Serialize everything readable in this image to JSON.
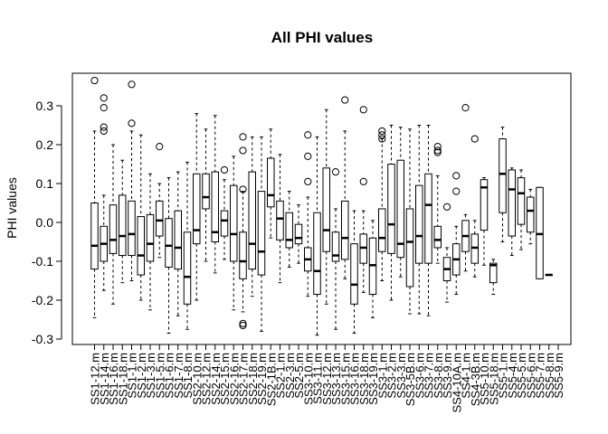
{
  "chart_data": {
    "type": "box",
    "title": "All PHI values",
    "xlabel": "",
    "ylabel": "PHI values",
    "ylim": [
      -0.33,
      0.39
    ],
    "yticks": [
      -0.3,
      -0.2,
      -0.1,
      0.0,
      0.1,
      0.2,
      0.3
    ],
    "ytick_labels": [
      "-0.3",
      "-0.2",
      "-0.1",
      "0.0",
      "0.1",
      "0.2",
      "0.3"
    ],
    "grid": false,
    "legend": "none",
    "colors": {
      "box_fill": "#ffffff",
      "stroke": "#000000",
      "median": "#000000"
    },
    "categories": [
      "SS1-12.m",
      "SS1-14.m",
      "SS1-16.m",
      "SS1-18.m",
      "SS1-1.m",
      "SS1-2.m",
      "SS1-3.m",
      "SS1-5.m",
      "SS1-6.m",
      "SS1-7.m",
      "SS1-8.m",
      "SS2-10.m",
      "SS2-12.m",
      "SS2-14.m",
      "SS2-15.m",
      "SS2-16.m",
      "SS2-17.m",
      "SS2-18.m",
      "SS2-19.m",
      "SS2-1B.m",
      "SS2-1.m",
      "SS2-3.m",
      "SS2-5.m",
      "SS3-10.m",
      "SS3-11.m",
      "SS3-12.m",
      "SS3-13.m",
      "SS3-15.m",
      "SS3-16.m",
      "SS3-18.m",
      "SS3-19.m",
      "SS3-1.m",
      "SS3-2.m",
      "SS3-3.m",
      "SS3-5B.m",
      "SS3-6.m",
      "SS3-7.m",
      "SS3-8.m",
      "SS3-9.m",
      "SS4-10A.m",
      "SS4-1.m",
      "SS4-3B.m",
      "SS5-10.m",
      "SS5-18.m",
      "SS5-1.m",
      "SS5-4.m",
      "SS5-5.m",
      "SS5-6.m",
      "SS5-7.m",
      "SS5-8.m",
      "SS5-9.m"
    ],
    "boxes": [
      {
        "min": -0.245,
        "q1": -0.12,
        "median": -0.06,
        "q3": 0.05,
        "max": 0.235,
        "outliers": [
          0.365
        ]
      },
      {
        "min": -0.175,
        "q1": -0.1,
        "median": -0.055,
        "q3": -0.01,
        "max": 0.07,
        "outliers": [
          0.32,
          0.295,
          0.245,
          0.235
        ]
      },
      {
        "min": -0.21,
        "q1": -0.08,
        "median": -0.045,
        "q3": 0.045,
        "max": 0.2,
        "outliers": []
      },
      {
        "min": -0.155,
        "q1": -0.085,
        "median": -0.035,
        "q3": 0.07,
        "max": 0.16,
        "outliers": []
      },
      {
        "min": -0.15,
        "q1": -0.085,
        "median": -0.03,
        "q3": 0.055,
        "max": 0.235,
        "outliers": [
          0.355,
          0.255
        ]
      },
      {
        "min": -0.2,
        "q1": -0.135,
        "median": -0.085,
        "q3": 0.015,
        "max": 0.225,
        "outliers": []
      },
      {
        "min": -0.225,
        "q1": -0.1,
        "median": -0.055,
        "q3": 0.02,
        "max": 0.125,
        "outliers": []
      },
      {
        "min": -0.09,
        "q1": -0.035,
        "median": 0.005,
        "q3": 0.055,
        "max": 0.1,
        "outliers": [
          0.195
        ]
      },
      {
        "min": -0.285,
        "q1": -0.115,
        "median": -0.06,
        "q3": 0.01,
        "max": 0.115,
        "outliers": []
      },
      {
        "min": -0.24,
        "q1": -0.12,
        "median": -0.065,
        "q3": 0.03,
        "max": 0.13,
        "outliers": []
      },
      {
        "min": -0.275,
        "q1": -0.21,
        "median": -0.14,
        "q3": -0.025,
        "max": 0.155,
        "outliers": []
      },
      {
        "min": -0.2,
        "q1": -0.055,
        "median": -0.02,
        "q3": 0.125,
        "max": 0.28,
        "outliers": []
      },
      {
        "min": -0.1,
        "q1": 0.035,
        "median": 0.065,
        "q3": 0.125,
        "max": 0.24,
        "outliers": []
      },
      {
        "min": -0.13,
        "q1": -0.05,
        "median": -0.025,
        "q3": 0.13,
        "max": 0.275,
        "outliers": []
      },
      {
        "min": -0.095,
        "q1": -0.035,
        "median": 0.005,
        "q3": 0.03,
        "max": 0.11,
        "outliers": [
          0.135
        ]
      },
      {
        "min": -0.225,
        "q1": -0.1,
        "median": -0.03,
        "q3": 0.095,
        "max": 0.17,
        "outliers": []
      },
      {
        "min": -0.23,
        "q1": -0.145,
        "median": -0.1,
        "q3": -0.025,
        "max": 0.08,
        "outliers": [
          0.22,
          0.185,
          0.085,
          -0.26,
          -0.265
        ]
      },
      {
        "min": -0.19,
        "q1": -0.12,
        "median": -0.055,
        "q3": 0.13,
        "max": 0.22,
        "outliers": []
      },
      {
        "min": -0.28,
        "q1": -0.135,
        "median": -0.075,
        "q3": 0.08,
        "max": 0.22,
        "outliers": []
      },
      {
        "min": -0.04,
        "q1": 0.04,
        "median": 0.07,
        "q3": 0.165,
        "max": 0.24,
        "outliers": []
      },
      {
        "min": -0.155,
        "q1": -0.045,
        "median": 0.01,
        "q3": 0.055,
        "max": 0.175,
        "outliers": []
      },
      {
        "min": -0.115,
        "q1": -0.065,
        "median": -0.045,
        "q3": 0.025,
        "max": 0.08,
        "outliers": []
      },
      {
        "min": -0.105,
        "q1": -0.055,
        "median": -0.04,
        "q3": -0.005,
        "max": 0.045,
        "outliers": []
      },
      {
        "min": -0.19,
        "q1": -0.125,
        "median": -0.095,
        "q3": -0.065,
        "max": 0.065,
        "outliers": [
          0.225,
          0.17,
          0.105
        ]
      },
      {
        "min": -0.29,
        "q1": -0.185,
        "median": -0.125,
        "q3": 0.025,
        "max": 0.22,
        "outliers": []
      },
      {
        "min": -0.21,
        "q1": -0.075,
        "median": -0.02,
        "q3": 0.14,
        "max": 0.29,
        "outliers": []
      },
      {
        "min": -0.275,
        "q1": -0.1,
        "median": -0.085,
        "q3": -0.025,
        "max": 0.035,
        "outliers": [
          0.13
        ]
      },
      {
        "min": -0.145,
        "q1": -0.095,
        "median": -0.04,
        "q3": 0.055,
        "max": 0.235,
        "outliers": [
          0.315
        ]
      },
      {
        "min": -0.285,
        "q1": -0.21,
        "median": -0.16,
        "q3": -0.055,
        "max": 0.03,
        "outliers": []
      },
      {
        "min": -0.18,
        "q1": -0.105,
        "median": -0.065,
        "q3": -0.03,
        "max": 0.03,
        "outliers": [
          0.29,
          0.105
        ]
      },
      {
        "min": -0.245,
        "q1": -0.185,
        "median": -0.11,
        "q3": -0.04,
        "max": 0.005,
        "outliers": []
      },
      {
        "min": -0.15,
        "q1": -0.075,
        "median": -0.04,
        "q3": 0.035,
        "max": 0.215,
        "outliers": [
          0.235,
          0.225,
          0.215
        ]
      },
      {
        "min": -0.2,
        "q1": -0.08,
        "median": -0.005,
        "q3": 0.15,
        "max": 0.25,
        "outliers": []
      },
      {
        "min": -0.14,
        "q1": -0.09,
        "median": -0.055,
        "q3": 0.16,
        "max": 0.245,
        "outliers": []
      },
      {
        "min": -0.235,
        "q1": -0.165,
        "median": -0.05,
        "q3": 0.035,
        "max": 0.24,
        "outliers": []
      },
      {
        "min": -0.235,
        "q1": -0.105,
        "median": -0.035,
        "q3": 0.095,
        "max": 0.25,
        "outliers": []
      },
      {
        "min": -0.24,
        "q1": -0.105,
        "median": 0.045,
        "q3": 0.125,
        "max": 0.25,
        "outliers": []
      },
      {
        "min": -0.105,
        "q1": -0.065,
        "median": -0.045,
        "q3": -0.01,
        "max": 0.12,
        "outliers": [
          0.195,
          0.185,
          0.18
        ]
      },
      {
        "min": -0.205,
        "q1": -0.15,
        "median": -0.12,
        "q3": -0.09,
        "max": -0.065,
        "outliers": [
          0.04
        ]
      },
      {
        "min": -0.185,
        "q1": -0.135,
        "median": -0.095,
        "q3": -0.055,
        "max": -0.01,
        "outliers": [
          0.12,
          0.08
        ]
      },
      {
        "min": -0.125,
        "q1": -0.075,
        "median": -0.035,
        "q3": 0.005,
        "max": 0.02,
        "outliers": [
          0.295
        ]
      },
      {
        "min": -0.14,
        "q1": -0.105,
        "median": -0.065,
        "q3": -0.03,
        "max": 0.005,
        "outliers": [
          0.215
        ]
      },
      {
        "min": -0.11,
        "q1": -0.02,
        "median": 0.09,
        "q3": 0.11,
        "max": 0.115,
        "outliers": []
      },
      {
        "min": -0.185,
        "q1": -0.155,
        "median": -0.11,
        "q3": -0.105,
        "max": -0.095,
        "outliers": []
      },
      {
        "min": -0.05,
        "q1": 0.025,
        "median": 0.125,
        "q3": 0.215,
        "max": 0.245,
        "outliers": []
      },
      {
        "min": -0.085,
        "q1": -0.035,
        "median": 0.085,
        "q3": 0.135,
        "max": 0.14,
        "outliers": []
      },
      {
        "min": -0.07,
        "q1": -0.005,
        "median": 0.075,
        "q3": 0.115,
        "max": 0.135,
        "outliers": []
      },
      {
        "min": -0.055,
        "q1": -0.025,
        "median": 0.03,
        "q3": 0.065,
        "max": 0.085,
        "outliers": []
      },
      {
        "min": -0.145,
        "q1": -0.145,
        "median": -0.03,
        "q3": 0.09,
        "max": 0.09,
        "outliers": []
      },
      {
        "min": -0.135,
        "q1": -0.135,
        "median": -0.135,
        "q3": -0.135,
        "max": -0.135,
        "outliers": []
      },
      {
        "min": null,
        "q1": null,
        "median": null,
        "q3": null,
        "max": null,
        "outliers": []
      }
    ]
  }
}
